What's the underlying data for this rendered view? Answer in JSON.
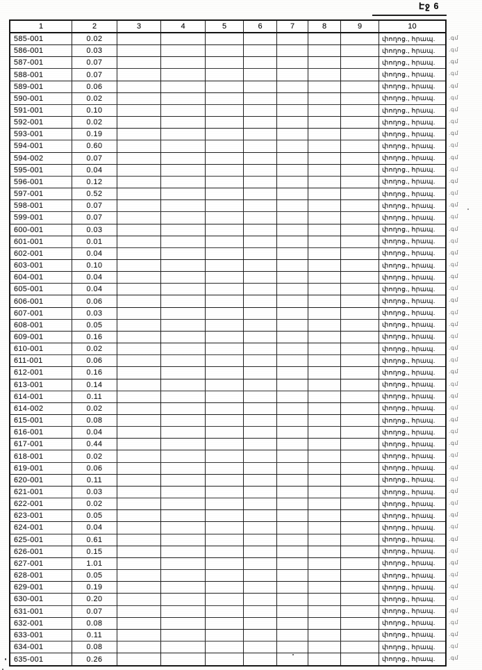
{
  "page": {
    "label": "Էջ 6"
  },
  "table": {
    "headers": [
      "1",
      "2",
      "3",
      "4",
      "5",
      "6",
      "7",
      "8",
      "9",
      "10"
    ],
    "usage_text": "փողոց., հրապ.",
    "margin_note_text": ".գմ",
    "rows": [
      {
        "id": "585-001",
        "value": "0.02"
      },
      {
        "id": "586-001",
        "value": "0.03"
      },
      {
        "id": "587-001",
        "value": "0.07"
      },
      {
        "id": "588-001",
        "value": "0.07"
      },
      {
        "id": "589-001",
        "value": "0.06"
      },
      {
        "id": "590-001",
        "value": "0.02"
      },
      {
        "id": "591-001",
        "value": "0.10"
      },
      {
        "id": "592-001",
        "value": "0.02"
      },
      {
        "id": "593-001",
        "value": "0.19"
      },
      {
        "id": "594-001",
        "value": "0.60"
      },
      {
        "id": "594-002",
        "value": "0.07"
      },
      {
        "id": "595-001",
        "value": "0.04"
      },
      {
        "id": "596-001",
        "value": "0.12"
      },
      {
        "id": "597-001",
        "value": "0.52"
      },
      {
        "id": "598-001",
        "value": "0.07"
      },
      {
        "id": "599-001",
        "value": "0.07"
      },
      {
        "id": "600-001",
        "value": "0.03"
      },
      {
        "id": "601-001",
        "value": "0.01"
      },
      {
        "id": "602-001",
        "value": "0.04"
      },
      {
        "id": "603-001",
        "value": "0.10"
      },
      {
        "id": "604-001",
        "value": "0.04"
      },
      {
        "id": "605-001",
        "value": "0.04"
      },
      {
        "id": "606-001",
        "value": "0.06"
      },
      {
        "id": "607-001",
        "value": "0.03"
      },
      {
        "id": "608-001",
        "value": "0.05"
      },
      {
        "id": "609-001",
        "value": "0.16"
      },
      {
        "id": "610-001",
        "value": "0.02"
      },
      {
        "id": "611-001",
        "value": "0.06"
      },
      {
        "id": "612-001",
        "value": "0.16"
      },
      {
        "id": "613-001",
        "value": "0.14"
      },
      {
        "id": "614-001",
        "value": "0.11"
      },
      {
        "id": "614-002",
        "value": "0.02"
      },
      {
        "id": "615-001",
        "value": "0.08"
      },
      {
        "id": "616-001",
        "value": "0.04"
      },
      {
        "id": "617-001",
        "value": "0.44"
      },
      {
        "id": "618-001",
        "value": "0.02"
      },
      {
        "id": "619-001",
        "value": "0.06"
      },
      {
        "id": "620-001",
        "value": "0.11"
      },
      {
        "id": "621-001",
        "value": "0.03"
      },
      {
        "id": "622-001",
        "value": "0.02"
      },
      {
        "id": "623-001",
        "value": "0.05"
      },
      {
        "id": "624-001",
        "value": "0.04"
      },
      {
        "id": "625-001",
        "value": "0.61"
      },
      {
        "id": "626-001",
        "value": "0.15"
      },
      {
        "id": "627-001",
        "value": "1.01"
      },
      {
        "id": "628-001",
        "value": "0.05"
      },
      {
        "id": "629-001",
        "value": "0.19"
      },
      {
        "id": "630-001",
        "value": "0.20"
      },
      {
        "id": "631-001",
        "value": "0.07"
      },
      {
        "id": "632-001",
        "value": "0.08"
      },
      {
        "id": "633-001",
        "value": "0.11"
      },
      {
        "id": "634-001",
        "value": "0.08"
      },
      {
        "id": "635-001",
        "value": "0.26"
      }
    ]
  }
}
